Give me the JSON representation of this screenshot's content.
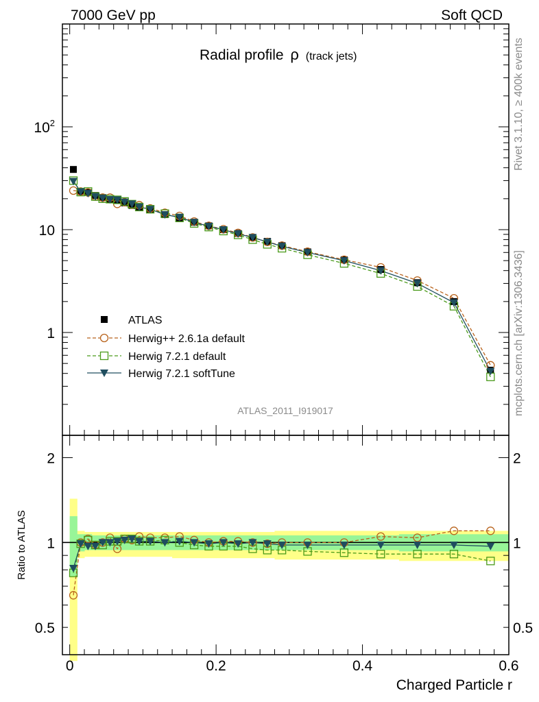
{
  "header": {
    "left": "7000 GeV pp",
    "right": "Soft QCD"
  },
  "side_labels": {
    "rivet": "Rivet 3.1.10, ≥ 400k events",
    "source": "mcplots.cern.ch [arXiv:1306.3436]"
  },
  "analysis_id": "ATLAS_2011_I919017",
  "colors": {
    "data": "#000000",
    "herwigpp": "#b8621b",
    "herwig721": "#4a9a1a",
    "softtune": "#1f4e5f",
    "band_inner": "#98f598",
    "band_outer": "#ffff88"
  },
  "chart_data": [
    {
      "type": "scatter",
      "title_main": "Radial profile",
      "title_symbol": "ρ",
      "title_sub": "(track jets)",
      "xlabel": "Charged Particle r",
      "ylabel": "",
      "xlim": [
        -0.01,
        0.6
      ],
      "ylim": [
        0.1,
        1000
      ],
      "yscale": "log",
      "yticks": [
        {
          "v": 1,
          "label": "1"
        },
        {
          "v": 10,
          "label": "10"
        },
        {
          "v": 100,
          "label": "10",
          "sup": "2"
        }
      ],
      "legend_position": "lower-left",
      "x": [
        0.005,
        0.015,
        0.025,
        0.035,
        0.045,
        0.055,
        0.065,
        0.075,
        0.085,
        0.095,
        0.11,
        0.13,
        0.15,
        0.17,
        0.19,
        0.21,
        0.23,
        0.25,
        0.27,
        0.29,
        0.325,
        0.375,
        0.425,
        0.475,
        0.525,
        0.575
      ],
      "series": [
        {
          "name": "ATLAS",
          "key": "data",
          "marker": "square-filled",
          "values": [
            38.5,
            23.5,
            23.0,
            21.5,
            20.5,
            19.6,
            19.3,
            18.2,
            17.2,
            16.4,
            15.6,
            14.0,
            13.0,
            11.8,
            10.9,
            10.0,
            9.2,
            8.4,
            7.7,
            7.0,
            6.1,
            5.1,
            4.1,
            3.05,
            2.0,
            0.43
          ]
        },
        {
          "name": "Herwig++ 2.6.1a default",
          "key": "herwigpp",
          "marker": "circle-open",
          "dash": "5,3",
          "values": [
            24.0,
            23.5,
            23.0,
            21.0,
            20.5,
            20.5,
            17.8,
            18.5,
            17.5,
            17.3,
            16.1,
            14.6,
            13.6,
            12.0,
            10.9,
            10.1,
            9.3,
            8.4,
            7.6,
            7.0,
            6.1,
            5.1,
            4.3,
            3.2,
            2.15,
            0.48
          ]
        },
        {
          "name": "Herwig 7.2.1 default",
          "key": "herwig721",
          "marker": "square-open",
          "dash": "5,3",
          "values": [
            30.0,
            23.2,
            23.5,
            21.0,
            20.0,
            19.8,
            19.5,
            18.8,
            17.7,
            16.6,
            15.8,
            14.3,
            13.0,
            11.5,
            10.6,
            9.7,
            8.9,
            8.0,
            7.2,
            6.6,
            5.7,
            4.7,
            3.75,
            2.8,
            1.8,
            0.37
          ]
        },
        {
          "name": "Herwig 7.2.1 softTune",
          "key": "softtune",
          "marker": "triangle-down",
          "dash": "",
          "values": [
            29.5,
            23.4,
            22.5,
            21.0,
            20.3,
            19.6,
            19.5,
            18.6,
            17.8,
            16.6,
            15.8,
            14.0,
            13.2,
            11.8,
            10.8,
            10.0,
            9.1,
            8.4,
            7.6,
            6.9,
            6.0,
            5.0,
            4.0,
            3.0,
            1.95,
            0.42
          ]
        }
      ]
    },
    {
      "type": "line",
      "xlabel": "Charged Particle r",
      "ylabel": "Ratio to ATLAS",
      "xlim": [
        -0.01,
        0.6
      ],
      "ylim": [
        0.4,
        2.4
      ],
      "yscale": "log",
      "yticks": [
        {
          "v": 0.5,
          "label": "0.5"
        },
        {
          "v": 1,
          "label": "1"
        },
        {
          "v": 2,
          "label": "2"
        }
      ],
      "xticks": [
        {
          "v": 0,
          "label": "0"
        },
        {
          "v": 0.2,
          "label": "0.2"
        },
        {
          "v": 0.4,
          "label": "0.4"
        },
        {
          "v": 0.6,
          "label": "0.6"
        }
      ],
      "x": [
        0.005,
        0.015,
        0.025,
        0.035,
        0.045,
        0.055,
        0.065,
        0.075,
        0.085,
        0.095,
        0.11,
        0.13,
        0.15,
        0.17,
        0.19,
        0.21,
        0.23,
        0.25,
        0.27,
        0.29,
        0.325,
        0.375,
        0.425,
        0.475,
        0.525,
        0.575
      ],
      "x_edges": [
        0,
        0.01,
        0.02,
        0.03,
        0.04,
        0.05,
        0.06,
        0.07,
        0.08,
        0.09,
        0.1,
        0.12,
        0.14,
        0.16,
        0.18,
        0.2,
        0.22,
        0.24,
        0.26,
        0.28,
        0.3,
        0.35,
        0.4,
        0.45,
        0.5,
        0.55,
        0.6
      ],
      "band_inner": [
        [
          0.76,
          1.24
        ],
        [
          0.93,
          1.07
        ],
        [
          0.94,
          1.07
        ],
        [
          0.94,
          1.06
        ],
        [
          0.94,
          1.06
        ],
        [
          0.94,
          1.06
        ],
        [
          0.94,
          1.06
        ],
        [
          0.94,
          1.06
        ],
        [
          0.94,
          1.06
        ],
        [
          0.94,
          1.06
        ],
        [
          0.94,
          1.06
        ],
        [
          0.94,
          1.06
        ],
        [
          0.94,
          1.06
        ],
        [
          0.94,
          1.06
        ],
        [
          0.94,
          1.06
        ],
        [
          0.94,
          1.06
        ],
        [
          0.94,
          1.06
        ],
        [
          0.94,
          1.06
        ],
        [
          0.94,
          1.06
        ],
        [
          0.94,
          1.06
        ],
        [
          0.94,
          1.06
        ],
        [
          0.94,
          1.06
        ],
        [
          0.94,
          1.06
        ],
        [
          0.93,
          1.07
        ],
        [
          0.93,
          1.07
        ],
        [
          0.93,
          1.07
        ]
      ],
      "band_outer": [
        [
          0.38,
          1.43
        ],
        [
          0.88,
          1.1
        ],
        [
          0.89,
          1.09
        ],
        [
          0.89,
          1.09
        ],
        [
          0.89,
          1.09
        ],
        [
          0.89,
          1.09
        ],
        [
          0.89,
          1.09
        ],
        [
          0.89,
          1.09
        ],
        [
          0.89,
          1.09
        ],
        [
          0.89,
          1.09
        ],
        [
          0.89,
          1.09
        ],
        [
          0.89,
          1.09
        ],
        [
          0.88,
          1.09
        ],
        [
          0.88,
          1.09
        ],
        [
          0.88,
          1.09
        ],
        [
          0.88,
          1.09
        ],
        [
          0.88,
          1.09
        ],
        [
          0.88,
          1.09
        ],
        [
          0.88,
          1.09
        ],
        [
          0.87,
          1.1
        ],
        [
          0.87,
          1.1
        ],
        [
          0.87,
          1.1
        ],
        [
          0.87,
          1.1
        ],
        [
          0.86,
          1.1
        ],
        [
          0.86,
          1.1
        ],
        [
          0.86,
          1.1
        ]
      ],
      "series": [
        {
          "key": "herwigpp",
          "marker": "circle-open",
          "dash": "5,3",
          "values": [
            0.65,
            1.0,
            1.03,
            0.98,
            1.0,
            1.04,
            0.95,
            1.03,
            1.02,
            1.05,
            1.04,
            1.04,
            1.05,
            1.02,
            1.0,
            1.01,
            1.01,
            1.0,
            0.99,
            1.0,
            1.0,
            1.0,
            1.05,
            1.04,
            1.1,
            1.1
          ]
        },
        {
          "key": "herwig721",
          "marker": "square-open",
          "dash": "5,3",
          "values": [
            0.78,
            0.99,
            1.02,
            0.98,
            0.98,
            1.01,
            1.01,
            1.03,
            1.03,
            1.01,
            1.01,
            1.02,
            1.0,
            0.98,
            0.97,
            0.97,
            0.97,
            0.95,
            0.94,
            0.94,
            0.93,
            0.92,
            0.91,
            0.91,
            0.91,
            0.86
          ]
        },
        {
          "key": "softtune",
          "marker": "triangle-down",
          "dash": "",
          "values": [
            0.81,
            0.99,
            0.97,
            0.97,
            1.0,
            1.0,
            1.01,
            1.02,
            1.03,
            1.01,
            1.01,
            1.0,
            1.01,
            1.0,
            0.99,
            1.0,
            0.99,
            1.0,
            0.99,
            0.98,
            0.98,
            0.98,
            0.98,
            0.98,
            0.98,
            0.97
          ]
        }
      ]
    }
  ]
}
